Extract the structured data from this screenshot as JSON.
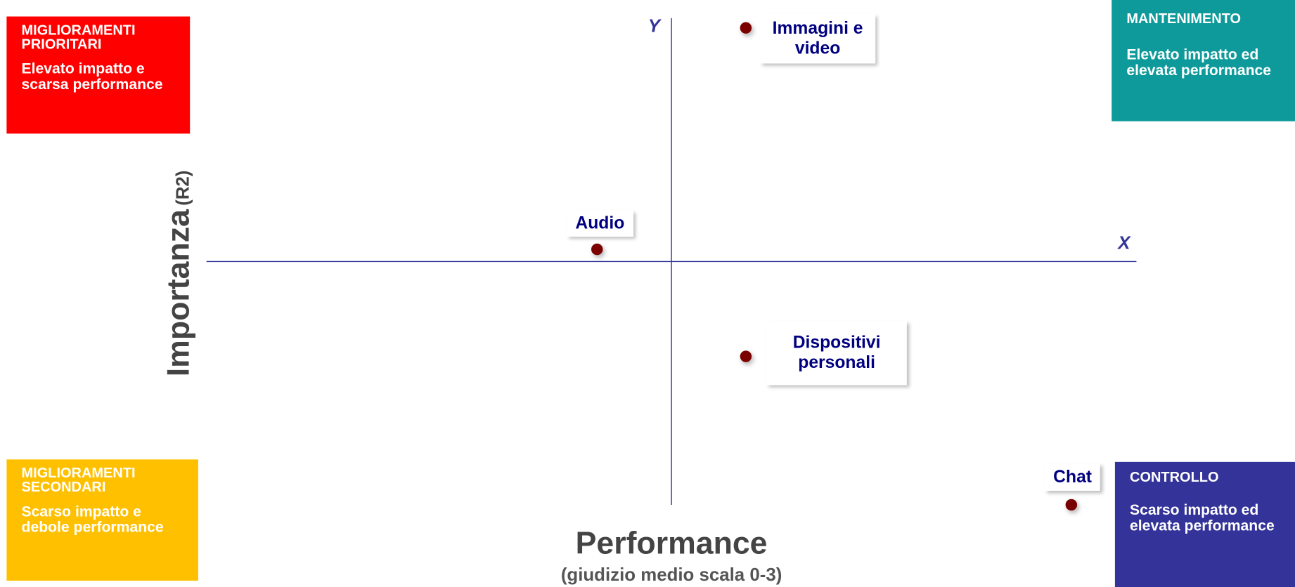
{
  "chart_data": {
    "type": "scatter",
    "x_label": "Performance",
    "x_sublabel": "(giudizio medio scala 0-3)",
    "y_label": "Importanza",
    "y_sublabel": "(R2)",
    "x_axis_name": "X",
    "y_axis_name": "Y",
    "xlim": [
      -1,
      1
    ],
    "ylim": [
      -1,
      1
    ],
    "color": "#7a0000",
    "points": [
      "Immagini e video",
      "Audio",
      "Dispositivi personali",
      "Chat"
    ],
    "x": [
      0.16,
      -0.16,
      0.16,
      0.86
    ],
    "values": [
      0.96,
      0.05,
      -0.39,
      -1.0
    ],
    "quadrants": [
      {
        "title": "MIGLIORAMENTI PRIORITARI",
        "text": "Elevato impatto e scarsa performance",
        "color": "#ff0000"
      },
      {
        "title": "MANTENIMENTO",
        "text": "Elevato impatto ed elevata performance",
        "color": "#0e9a9a"
      },
      {
        "title": "MIGLIORAMENTI SECONDARI",
        "text": "Scarso impatto e debole performance",
        "color": "#ffc000"
      },
      {
        "title": "CONTROLLO",
        "text": "Scarso impatto ed elevata performance",
        "color": "#333399"
      }
    ]
  }
}
